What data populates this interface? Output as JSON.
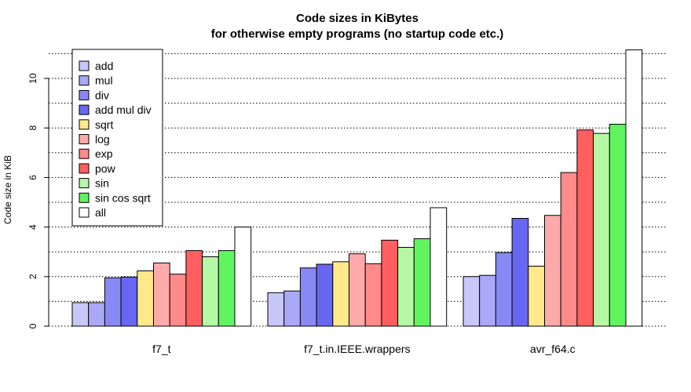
{
  "chart_data": {
    "type": "bar",
    "title": "Code sizes in KiBytes",
    "subtitle": "for otherwise empty programs (no startup code etc.)",
    "xlabel": "",
    "ylabel": "Code size in KiB",
    "ylim": [
      0,
      11.5
    ],
    "yticks": [
      0,
      2,
      4,
      6,
      8,
      10
    ],
    "grid_lines": [
      1,
      2,
      3,
      4,
      5,
      6,
      7,
      8,
      9,
      10,
      11
    ],
    "grid": true,
    "legend_position": "top-left",
    "categories": [
      "f7_t",
      "f7_t.in.IEEE.wrappers",
      "avr_f64.c"
    ],
    "series": [
      {
        "name": "add",
        "color": "#c7c7fa",
        "values": [
          0.95,
          1.35,
          2.0
        ]
      },
      {
        "name": "mul",
        "color": "#a9a9f7",
        "values": [
          0.95,
          1.42,
          2.05
        ]
      },
      {
        "name": "div",
        "color": "#8989f5",
        "values": [
          1.95,
          2.35,
          2.97
        ]
      },
      {
        "name": "add mul div",
        "color": "#6767f2",
        "values": [
          1.98,
          2.5,
          4.35
        ]
      },
      {
        "name": "sqrt",
        "color": "#ffe98a",
        "values": [
          2.23,
          2.6,
          2.42
        ]
      },
      {
        "name": "log",
        "color": "#ffaaaa",
        "values": [
          2.55,
          2.92,
          4.47
        ]
      },
      {
        "name": "exp",
        "color": "#ff8a8a",
        "values": [
          2.1,
          2.52,
          6.2
        ]
      },
      {
        "name": "pow",
        "color": "#ff5f5f",
        "values": [
          3.05,
          3.47,
          7.92
        ]
      },
      {
        "name": "sin",
        "color": "#b5f9a7",
        "values": [
          2.8,
          3.18,
          7.78
        ]
      },
      {
        "name": "sin cos sqrt",
        "color": "#60f55f",
        "values": [
          3.05,
          3.53,
          8.15
        ]
      },
      {
        "name": "all",
        "color": "#ffffff",
        "values": [
          4.0,
          4.78,
          11.15
        ]
      }
    ]
  }
}
